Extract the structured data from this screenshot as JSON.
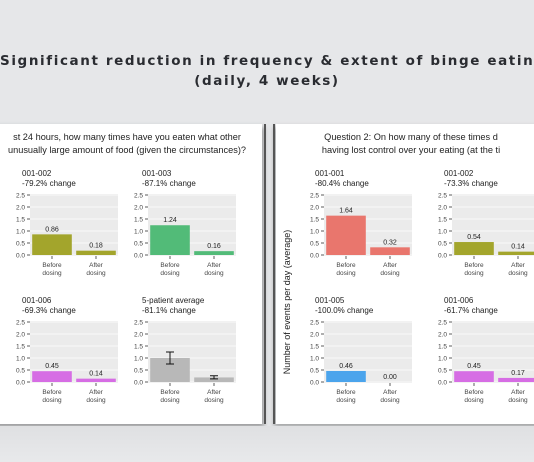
{
  "title": {
    "line1": "Significant reduction in frequency & extent of binge eating",
    "line2": "(daily, 4 weeks)"
  },
  "colors": {
    "olive": "#a3a52c",
    "green": "#52bb78",
    "salmon": "#e9766d",
    "blue": "#4ba4ec",
    "magenta": "#d66de4",
    "gray": "#b8b8b8",
    "panel_bg": "#ebebeb"
  },
  "chart_data": [
    {
      "type": "bar",
      "panel": "left",
      "question_lines": [
        "st 24 hours, how many times have you eaten what other",
        "unusually large amount of food (given the circumstances)?"
      ],
      "ylabel": "",
      "ylim": [
        0,
        2.5
      ],
      "yticks": [
        "2.5",
        "2.0",
        "1.5",
        "1.0",
        "0.5",
        "0.0"
      ],
      "categories": [
        "Before dosing",
        "After dosing"
      ],
      "facets": [
        {
          "id": "001-002",
          "change": "-79.2% change",
          "values": [
            0.86,
            0.18
          ],
          "labels": [
            "0.86",
            "0.18"
          ],
          "color": "#a3a52c"
        },
        {
          "id": "001-003",
          "change": "-87.1% change",
          "values": [
            1.24,
            0.16
          ],
          "labels": [
            "1.24",
            "0.16"
          ],
          "color": "#52bb78"
        },
        {
          "id": "001-006",
          "change": "-69.3% change",
          "values": [
            0.45,
            0.14
          ],
          "labels": [
            "0.45",
            "0.14"
          ],
          "color": "#d66de4"
        },
        {
          "id": "5-patient average",
          "change": "-81.1% change",
          "values": [
            1.0,
            0.19
          ],
          "labels": [
            "",
            ""
          ],
          "color": "#b8b8b8",
          "errors": [
            [
              0.75,
              1.25
            ],
            [
              0.13,
              0.26
            ]
          ]
        }
      ]
    },
    {
      "type": "bar",
      "panel": "right",
      "question_lines": [
        "Question 2: On how many of these times d",
        "having lost control over your eating (at the ti"
      ],
      "ylabel": "Number of events per day (average)",
      "ylim": [
        0,
        2.5
      ],
      "yticks": [
        "2.5",
        "2.0",
        "1.5",
        "1.0",
        "0.5",
        "0.0"
      ],
      "categories": [
        "Before dosing",
        "After dosing"
      ],
      "facets": [
        {
          "id": "001-001",
          "change": "-80.4% change",
          "values": [
            1.64,
            0.32
          ],
          "labels": [
            "1.64",
            "0.32"
          ],
          "color": "#e9766d"
        },
        {
          "id": "001-002",
          "change": "-73.3% change",
          "values": [
            0.54,
            0.14
          ],
          "labels": [
            "0.54",
            "0.14"
          ],
          "color": "#a3a52c"
        },
        {
          "id": "001-005",
          "change": "-100.0% change",
          "values": [
            0.46,
            0.0
          ],
          "labels": [
            "0.46",
            "0.00"
          ],
          "color": "#4ba4ec"
        },
        {
          "id": "001-006",
          "change": "-61.7% change",
          "values": [
            0.45,
            0.17
          ],
          "labels": [
            "0.45",
            "0.17"
          ],
          "color": "#d66de4"
        }
      ]
    }
  ]
}
